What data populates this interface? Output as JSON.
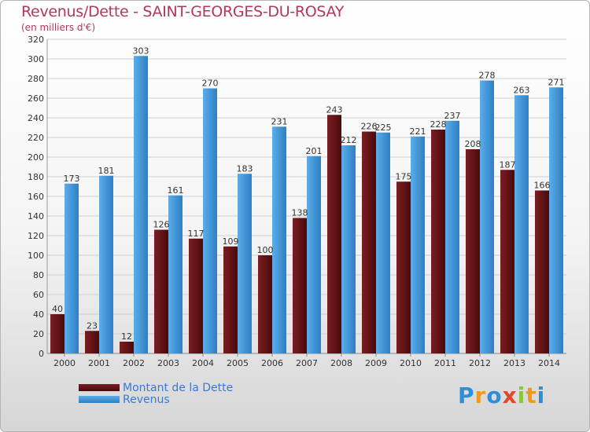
{
  "title": "Revenus/Dette - SAINT-GEORGES-DU-ROSAY",
  "subtitle": "(en milliers d'€)",
  "legend": {
    "dette_label": "Montant de la Dette",
    "revenus_label": "Revenus"
  },
  "brand": {
    "letters": [
      "P",
      "r",
      "o",
      "x",
      "i",
      "t",
      "i"
    ],
    "colors": [
      "#2f8fd6",
      "#f29a1c",
      "#2f8fd6",
      "#e2462b",
      "#8cc63e",
      "#f29a1c",
      "#2f8fd6"
    ]
  },
  "colors": {
    "dette": "#7a1e22",
    "dette_dark": "#4a0a0c",
    "revenus": "#5aaee8",
    "revenus_dark": "#2e7fc4",
    "grid": "#d0d0d0",
    "axis_text": "#333333"
  },
  "chart_data": {
    "type": "bar",
    "categories": [
      "2000",
      "2001",
      "2002",
      "2003",
      "2004",
      "2005",
      "2006",
      "2007",
      "2008",
      "2009",
      "2010",
      "2011",
      "2012",
      "2013",
      "2014"
    ],
    "series": [
      {
        "name": "Montant de la Dette",
        "values": [
          40,
          23,
          12,
          126,
          117,
          109,
          100,
          138,
          243,
          226,
          175,
          228,
          208,
          187,
          166
        ]
      },
      {
        "name": "Revenus",
        "values": [
          173,
          181,
          303,
          161,
          270,
          183,
          231,
          201,
          212,
          225,
          221,
          237,
          278,
          263,
          271
        ]
      }
    ],
    "ylim": [
      0,
      320
    ],
    "yticks": [
      0,
      20,
      40,
      60,
      80,
      100,
      120,
      140,
      160,
      180,
      200,
      220,
      240,
      260,
      280,
      300,
      320
    ],
    "grid": true,
    "legend_position": "bottom-left"
  }
}
